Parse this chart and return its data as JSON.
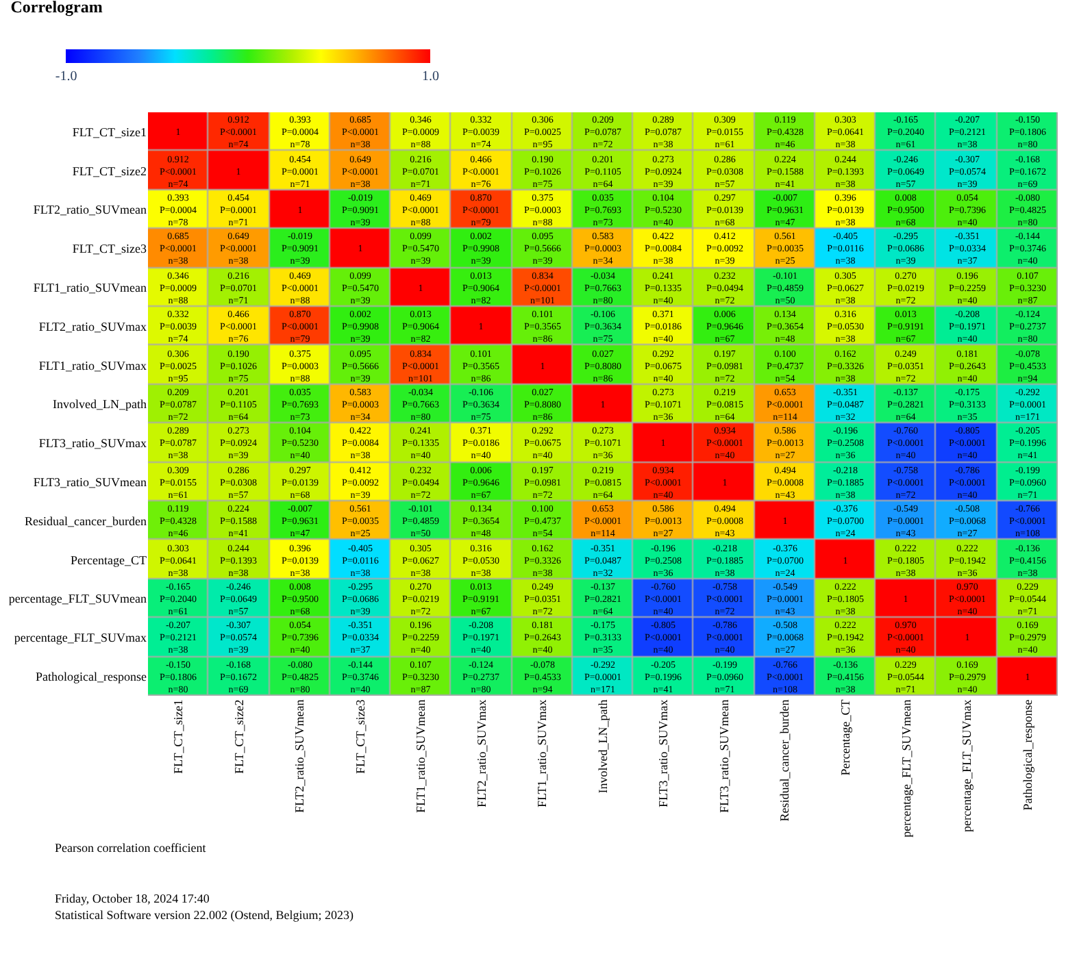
{
  "chart_data": {
    "type": "heatmap",
    "title": "Correlogram",
    "categories": [
      "FLT_CT_size1",
      "FLT_CT_size2",
      "FLT2_ratio_SUVmean",
      "FLT_CT_size3",
      "FLT1_ratio_SUVmean",
      "FLT2_ratio_SUVmax",
      "FLT1_ratio_SUVmax",
      "Involved_LN_path",
      "FLT3_ratio_SUVmax",
      "FLT3_ratio_SUVmean",
      "Residual_cancer_burden",
      "Percentage_CT",
      "percentage_FLT_SUVmean",
      "percentage_FLT_SUVmax",
      "Pathological_response"
    ],
    "y_categories": [
      "FLT_CT_size1",
      "FLT_CT_size2",
      "FLT2_ratio_SUVmean",
      "FLT_CT_size3",
      "FLT1_ratio_SUVmean",
      "FLT2_ratio_SUVmax",
      "FLT1_ratio_SUVmax",
      "Involved_LN_path",
      "FLT3_ratio_SUVmax",
      "FLT3_ratio_SUVmean",
      "Residual_cancer_burden",
      "Percentage_CT",
      "percentage_FLT_SUVmean",
      "percentage_FLT_SUVmax",
      "Pathological_response"
    ],
    "cells": [
      [
        1,
        0.912,
        0.393,
        0.685,
        0.346,
        0.332,
        0.306,
        0.209,
        0.289,
        0.309,
        0.119,
        0.303,
        -0.165,
        -0.207,
        -0.15
      ],
      [
        0.912,
        1,
        0.454,
        0.649,
        0.216,
        0.466,
        0.19,
        0.201,
        0.273,
        0.286,
        0.224,
        0.244,
        -0.246,
        -0.307,
        -0.168
      ],
      [
        0.393,
        0.454,
        1,
        -0.019,
        0.469,
        0.87,
        0.375,
        0.035,
        0.104,
        0.297,
        -0.007,
        0.396,
        0.008,
        0.054,
        -0.08
      ],
      [
        0.685,
        0.649,
        -0.019,
        1,
        0.099,
        0.002,
        0.095,
        0.583,
        0.422,
        0.412,
        0.561,
        -0.405,
        -0.295,
        -0.351,
        -0.144
      ],
      [
        0.346,
        0.216,
        0.469,
        0.099,
        1,
        0.013,
        0.834,
        -0.034,
        0.241,
        0.232,
        -0.101,
        0.305,
        0.27,
        0.196,
        0.107
      ],
      [
        0.332,
        0.466,
        0.87,
        0.002,
        0.013,
        1,
        0.101,
        -0.106,
        0.371,
        0.006,
        0.134,
        0.316,
        0.013,
        -0.208,
        -0.124
      ],
      [
        0.306,
        0.19,
        0.375,
        0.095,
        0.834,
        0.101,
        1,
        0.027,
        0.292,
        0.197,
        0.1,
        0.162,
        0.249,
        0.181,
        -0.078
      ],
      [
        0.209,
        0.201,
        0.035,
        0.583,
        -0.034,
        -0.106,
        0.027,
        1,
        0.273,
        0.219,
        0.653,
        -0.351,
        -0.137,
        -0.175,
        -0.292
      ],
      [
        0.289,
        0.273,
        0.104,
        0.422,
        0.241,
        0.371,
        0.292,
        0.273,
        1,
        0.934,
        0.586,
        -0.196,
        -0.76,
        -0.805,
        -0.205
      ],
      [
        0.309,
        0.286,
        0.297,
        0.412,
        0.232,
        0.006,
        0.197,
        0.219,
        0.934,
        1,
        0.494,
        -0.218,
        -0.758,
        -0.786,
        -0.199
      ],
      [
        0.119,
        0.224,
        -0.007,
        0.561,
        -0.101,
        0.134,
        0.1,
        0.653,
        0.586,
        0.494,
        1,
        -0.376,
        -0.549,
        -0.508,
        -0.766
      ],
      [
        0.303,
        0.244,
        0.396,
        -0.405,
        0.305,
        0.316,
        0.162,
        -0.351,
        -0.196,
        -0.218,
        -0.376,
        1,
        0.222,
        0.222,
        -0.136
      ],
      [
        -0.165,
        -0.246,
        0.008,
        -0.295,
        0.27,
        0.013,
        0.249,
        -0.137,
        -0.76,
        -0.758,
        -0.549,
        0.222,
        1,
        0.97,
        0.229
      ],
      [
        -0.207,
        -0.307,
        0.054,
        -0.351,
        0.196,
        -0.208,
        0.181,
        -0.175,
        -0.805,
        -0.786,
        -0.508,
        0.222,
        0.97,
        1,
        0.169
      ],
      [
        -0.15,
        -0.168,
        -0.08,
        -0.144,
        0.107,
        -0.124,
        -0.078,
        -0.292,
        -0.205,
        -0.199,
        -0.766,
        -0.136,
        0.229,
        0.169,
        1
      ]
    ],
    "cell_labels": [
      [
        "1",
        "0.912\nP<0.0001\nn=74",
        "0.393\nP=0.0004\nn=78",
        "0.685\nP<0.0001\nn=38",
        "0.346\nP=0.0009\nn=88",
        "0.332\nP=0.0039\nn=74",
        "0.306\nP=0.0025\nn=95",
        "0.209\nP=0.0787\nn=72",
        "0.289\nP=0.0787\nn=38",
        "0.309\nP=0.0155\nn=61",
        "0.119\nP=0.4328\nn=46",
        "0.303\nP=0.0641\nn=38",
        "-0.165\nP=0.2040\nn=61",
        "-0.207\nP=0.2121\nn=38",
        "-0.150\nP=0.1806\nn=80"
      ],
      [
        "0.912\nP<0.0001\nn=74",
        "1",
        "0.454\nP=0.0001\nn=71",
        "0.649\nP<0.0001\nn=38",
        "0.216\nP=0.0701\nn=71",
        "0.466\nP<0.0001\nn=76",
        "0.190\nP=0.1026\nn=75",
        "0.201\nP=0.1105\nn=64",
        "0.273\nP=0.0924\nn=39",
        "0.286\nP=0.0308\nn=57",
        "0.224\nP=0.1588\nn=41",
        "0.244\nP=0.1393\nn=38",
        "-0.246\nP=0.0649\nn=57",
        "-0.307\nP=0.0574\nn=39",
        "-0.168\nP=0.1672\nn=69"
      ],
      [
        "0.393\nP=0.0004\nn=78",
        "0.454\nP=0.0001\nn=71",
        "1",
        "-0.019\nP=0.9091\nn=39",
        "0.469\nP<0.0001\nn=88",
        "0.870\nP<0.0001\nn=79",
        "0.375\nP=0.0003\nn=88",
        "0.035\nP=0.7693\nn=73",
        "0.104\nP=0.5230\nn=40",
        "0.297\nP=0.0139\nn=68",
        "-0.007\nP=0.9631\nn=47",
        "0.396\nP=0.0139\nn=38",
        "0.008\nP=0.9500\nn=68",
        "0.054\nP=0.7396\nn=40",
        "-0.080\nP=0.4825\nn=80"
      ],
      [
        "0.685\nP<0.0001\nn=38",
        "0.649\nP<0.0001\nn=38",
        "-0.019\nP=0.9091\nn=39",
        "1",
        "0.099\nP=0.5470\nn=39",
        "0.002\nP=0.9908\nn=39",
        "0.095\nP=0.5666\nn=39",
        "0.583\nP=0.0003\nn=34",
        "0.422\nP=0.0084\nn=38",
        "0.412\nP=0.0092\nn=39",
        "0.561\nP=0.0035\nn=25",
        "-0.405\nP=0.0116\nn=38",
        "-0.295\nP=0.0686\nn=39",
        "-0.351\nP=0.0334\nn=37",
        "-0.144\nP=0.3746\nn=40"
      ],
      [
        "0.346\nP=0.0009\nn=88",
        "0.216\nP=0.0701\nn=71",
        "0.469\nP<0.0001\nn=88",
        "0.099\nP=0.5470\nn=39",
        "1",
        "0.013\nP=0.9064\nn=82",
        "0.834\nP<0.0001\nn=101",
        "-0.034\nP=0.7663\nn=80",
        "0.241\nP=0.1335\nn=40",
        "0.232\nP=0.0494\nn=72",
        "-0.101\nP=0.4859\nn=50",
        "0.305\nP=0.0627\nn=38",
        "0.270\nP=0.0219\nn=72",
        "0.196\nP=0.2259\nn=40",
        "0.107\nP=0.3230\nn=87"
      ],
      [
        "0.332\nP=0.0039\nn=74",
        "0.466\nP<0.0001\nn=76",
        "0.870\nP<0.0001\nn=79",
        "0.002\nP=0.9908\nn=39",
        "0.013\nP=0.9064\nn=82",
        "1",
        "0.101\nP=0.3565\nn=86",
        "-0.106\nP=0.3634\nn=75",
        "0.371\nP=0.0186\nn=40",
        "0.006\nP=0.9646\nn=67",
        "0.134\nP=0.3654\nn=48",
        "0.316\nP=0.0530\nn=38",
        "0.013\nP=0.9191\nn=67",
        "-0.208\nP=0.1971\nn=40",
        "-0.124\nP=0.2737\nn=80"
      ],
      [
        "0.306\nP=0.0025\nn=95",
        "0.190\nP=0.1026\nn=75",
        "0.375\nP=0.0003\nn=88",
        "0.095\nP=0.5666\nn=39",
        "0.834\nP<0.0001\nn=101",
        "0.101\nP=0.3565\nn=86",
        "1",
        "0.027\nP=0.8080\nn=86",
        "0.292\nP=0.0675\nn=40",
        "0.197\nP=0.0981\nn=72",
        "0.100\nP=0.4737\nn=54",
        "0.162\nP=0.3326\nn=38",
        "0.249\nP=0.0351\nn=72",
        "0.181\nP=0.2643\nn=40",
        "-0.078\nP=0.4533\nn=94"
      ],
      [
        "0.209\nP=0.0787\nn=72",
        "0.201\nP=0.1105\nn=64",
        "0.035\nP=0.7693\nn=73",
        "0.583\nP=0.0003\nn=34",
        "-0.034\nP=0.7663\nn=80",
        "-0.106\nP=0.3634\nn=75",
        "0.027\nP=0.8080\nn=86",
        "1",
        "0.273\nP=0.1071\nn=36",
        "0.219\nP=0.0815\nn=64",
        "0.653\nP<0.0001\nn=114",
        "-0.351\nP=0.0487\nn=32",
        "-0.137\nP=0.2821\nn=64",
        "-0.175\nP=0.3133\nn=35",
        "-0.292\nP=0.0001\nn=171"
      ],
      [
        "0.289\nP=0.0787\nn=38",
        "0.273\nP=0.0924\nn=39",
        "0.104\nP=0.5230\nn=40",
        "0.422\nP=0.0084\nn=38",
        "0.241\nP=0.1335\nn=40",
        "0.371\nP=0.0186\nn=40",
        "0.292\nP=0.0675\nn=40",
        "0.273\nP=0.1071\nn=36",
        "1",
        "0.934\nP<0.0001\nn=40",
        "0.586\nP=0.0013\nn=27",
        "-0.196\nP=0.2508\nn=36",
        "-0.760\nP<0.0001\nn=40",
        "-0.805\nP<0.0001\nn=40",
        "-0.205\nP=0.1996\nn=41"
      ],
      [
        "0.309\nP=0.0155\nn=61",
        "0.286\nP=0.0308\nn=57",
        "0.297\nP=0.0139\nn=68",
        "0.412\nP=0.0092\nn=39",
        "0.232\nP=0.0494\nn=72",
        "0.006\nP=0.9646\nn=67",
        "0.197\nP=0.0981\nn=72",
        "0.219\nP=0.0815\nn=64",
        "0.934\nP<0.0001\nn=40",
        "1",
        "0.494\nP=0.0008\nn=43",
        "-0.218\nP=0.1885\nn=38",
        "-0.758\nP<0.0001\nn=72",
        "-0.786\nP<0.0001\nn=40",
        "-0.199\nP=0.0960\nn=71"
      ],
      [
        "0.119\nP=0.4328\nn=46",
        "0.224\nP=0.1588\nn=41",
        "-0.007\nP=0.9631\nn=47",
        "0.561\nP=0.0035\nn=25",
        "-0.101\nP=0.4859\nn=50",
        "0.134\nP=0.3654\nn=48",
        "0.100\nP=0.4737\nn=54",
        "0.653\nP<0.0001\nn=114",
        "0.586\nP=0.0013\nn=27",
        "0.494\nP=0.0008\nn=43",
        "1",
        "-0.376\nP=0.0700\nn=24",
        "-0.549\nP=0.0001\nn=43",
        "-0.508\nP=0.0068\nn=27",
        "-0.766\nP<0.0001\nn=108"
      ],
      [
        "0.303\nP=0.0641\nn=38",
        "0.244\nP=0.1393\nn=38",
        "0.396\nP=0.0139\nn=38",
        "-0.405\nP=0.0116\nn=38",
        "0.305\nP=0.0627\nn=38",
        "0.316\nP=0.0530\nn=38",
        "0.162\nP=0.3326\nn=38",
        "-0.351\nP=0.0487\nn=32",
        "-0.196\nP=0.2508\nn=36",
        "-0.218\nP=0.1885\nn=38",
        "-0.376\nP=0.0700\nn=24",
        "1",
        "0.222\nP=0.1805\nn=38",
        "0.222\nP=0.1942\nn=36",
        "-0.136\nP=0.4156\nn=38"
      ],
      [
        "-0.165\nP=0.2040\nn=61",
        "-0.246\nP=0.0649\nn=57",
        "0.008\nP=0.9500\nn=68",
        "-0.295\nP=0.0686\nn=39",
        "0.270\nP=0.0219\nn=72",
        "0.013\nP=0.9191\nn=67",
        "0.249\nP=0.0351\nn=72",
        "-0.137\nP=0.2821\nn=64",
        "-0.760\nP<0.0001\nn=40",
        "-0.758\nP<0.0001\nn=72",
        "-0.549\nP=0.0001\nn=43",
        "0.222\nP=0.1805\nn=38",
        "1",
        "0.970\nP<0.0001\nn=40",
        "0.229\nP=0.0544\nn=71"
      ],
      [
        "-0.207\nP=0.2121\nn=38",
        "-0.307\nP=0.0574\nn=39",
        "0.054\nP=0.7396\nn=40",
        "-0.351\nP=0.0334\nn=37",
        "0.196\nP=0.2259\nn=40",
        "-0.208\nP=0.1971\nn=40",
        "0.181\nP=0.2643\nn=40",
        "-0.175\nP=0.3133\nn=35",
        "-0.805\nP<0.0001\nn=40",
        "-0.786\nP<0.0001\nn=40",
        "-0.508\nP=0.0068\nn=27",
        "0.222\nP=0.1942\nn=36",
        "0.970\nP<0.0001\nn=40",
        "1",
        "0.169\nP=0.2979\nn=40"
      ],
      [
        "-0.150\nP=0.1806\nn=80",
        "-0.168\nP=0.1672\nn=69",
        "-0.080\nP=0.4825\nn=80",
        "-0.144\nP=0.3746\nn=40",
        "0.107\nP=0.3230\nn=87",
        "-0.124\nP=0.2737\nn=80",
        "-0.078\nP=0.4533\nn=94",
        "-0.292\nP=0.0001\nn=171",
        "-0.205\nP=0.1996\nn=41",
        "-0.199\nP=0.0960\nn=71",
        "-0.766\nP<0.0001\nn=108",
        "-0.136\nP=0.4156\nn=38",
        "0.229\nP=0.0544\nn=71",
        "0.169\nP=0.2979\nn=40",
        "1"
      ]
    ],
    "clim": [
      -1,
      1
    ],
    "cticks": [
      {
        "value": 1,
        "label": "1.0"
      },
      {
        "value": -1,
        "label": "-1.0"
      }
    ],
    "annotations": [
      "Pearson correlation coefficient",
      "Friday, October 18, 2024 17:40",
      "Statistical Software version 22.002 (Ostend, Belgium; 2023)"
    ]
  }
}
